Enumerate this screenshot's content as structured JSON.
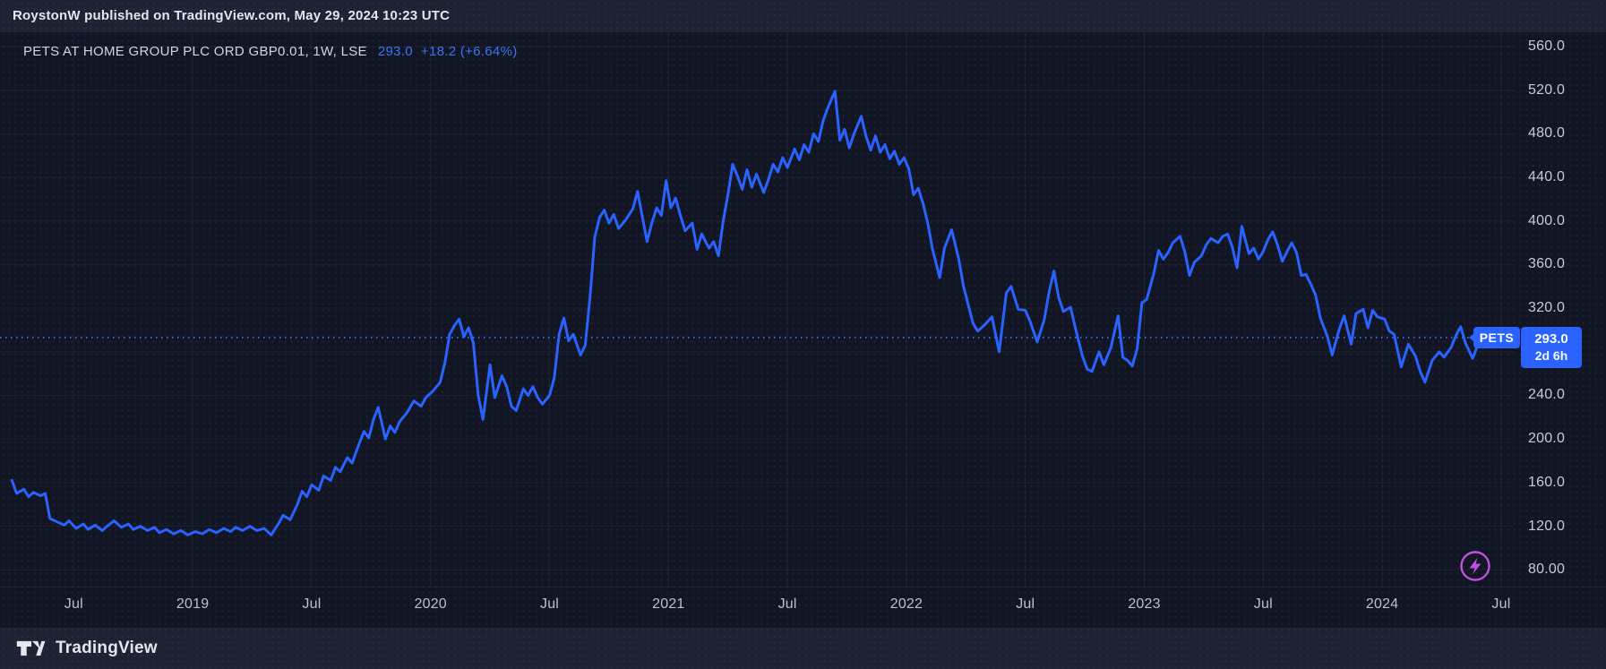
{
  "attribution": {
    "text": "RoystonW published on TradingView.com, May 29, 2024 10:23 UTC"
  },
  "symbol_row": {
    "full_text": "PETS AT HOME GROUP PLC ORD GBP0.01, 1W, LSE",
    "price": "293.0",
    "change": "+18.2 (+6.64%)"
  },
  "price_label": {
    "price": "293.0",
    "countdown": "2d 6h"
  },
  "series_badge": {
    "label": "PETS"
  },
  "footer": {
    "brand": "TradingView",
    "logo_icon": "tradingview-logo"
  },
  "icons": {
    "bottom_right": "lightning-bolt-icon"
  },
  "colors": {
    "accent_blue": "#2962ff",
    "quote_text_blue": "#3a74f1",
    "chart_background": "#111524",
    "band_background": "#1e2232",
    "axis_text": "#c8ccd6",
    "grid": "rgba(150,160,190,0.09)",
    "flash_purple": "#c050dd",
    "label_text_white": "#ffffff"
  },
  "chart_data": {
    "type": "line",
    "title": "PETS AT HOME GROUP PLC ORD GBP0.01, 1W, LSE",
    "symbol": "PETS",
    "interval": "1W",
    "exchange": "LSE",
    "last_price": 293.0,
    "change": 18.2,
    "change_pct": 6.64,
    "current_price_line": 293.0,
    "line_color": "#2962ff",
    "grid": true,
    "x_domain": [
      2018.19,
      2024.553
    ],
    "y_domain": [
      64.6,
      573.1
    ],
    "y_gridlines": [
      560,
      520,
      480,
      440,
      400,
      360,
      320,
      280,
      240,
      200,
      160,
      120,
      80
    ],
    "y_axis_labels": [
      {
        "value": 560,
        "label": "560.0"
      },
      {
        "value": 520,
        "label": "520.0"
      },
      {
        "value": 480,
        "label": "480.0"
      },
      {
        "value": 440,
        "label": "440.0"
      },
      {
        "value": 400,
        "label": "400.0"
      },
      {
        "value": 360,
        "label": "360.0"
      },
      {
        "value": 320,
        "label": "320.0"
      },
      {
        "value": 240,
        "label": "240.0"
      },
      {
        "value": 200,
        "label": "200.0"
      },
      {
        "value": 160,
        "label": "160.0"
      },
      {
        "value": 120,
        "label": "120.0"
      },
      {
        "value": 80,
        "label": "80.00"
      }
    ],
    "x_axis_labels": [
      {
        "t": 2018.5,
        "label": "Jul"
      },
      {
        "t": 2019.0,
        "label": "2019"
      },
      {
        "t": 2019.5,
        "label": "Jul"
      },
      {
        "t": 2020.0,
        "label": "2020"
      },
      {
        "t": 2020.5,
        "label": "Jul"
      },
      {
        "t": 2021.0,
        "label": "2021"
      },
      {
        "t": 2021.5,
        "label": "Jul"
      },
      {
        "t": 2022.0,
        "label": "2022"
      },
      {
        "t": 2022.5,
        "label": "Jul"
      },
      {
        "t": 2023.0,
        "label": "2023"
      },
      {
        "t": 2023.5,
        "label": "Jul"
      },
      {
        "t": 2024.0,
        "label": "2024"
      },
      {
        "t": 2024.5,
        "label": "Jul"
      }
    ],
    "points": [
      [
        2018.24,
        162
      ],
      [
        2018.26,
        150
      ],
      [
        2018.29,
        154
      ],
      [
        2018.31,
        147
      ],
      [
        2018.33,
        151
      ],
      [
        2018.36,
        148
      ],
      [
        2018.38,
        150
      ],
      [
        2018.4,
        127
      ],
      [
        2018.43,
        124
      ],
      [
        2018.46,
        121
      ],
      [
        2018.48,
        125
      ],
      [
        2018.51,
        118
      ],
      [
        2018.54,
        122
      ],
      [
        2018.56,
        117
      ],
      [
        2018.59,
        121
      ],
      [
        2018.62,
        116
      ],
      [
        2018.64,
        120
      ],
      [
        2018.67,
        125
      ],
      [
        2018.7,
        119
      ],
      [
        2018.73,
        122
      ],
      [
        2018.75,
        117
      ],
      [
        2018.78,
        120
      ],
      [
        2018.81,
        116
      ],
      [
        2018.84,
        119
      ],
      [
        2018.86,
        114
      ],
      [
        2018.89,
        117
      ],
      [
        2018.92,
        113
      ],
      [
        2018.95,
        116
      ],
      [
        2018.98,
        112
      ],
      [
        2019.01,
        115
      ],
      [
        2019.04,
        113
      ],
      [
        2019.07,
        117
      ],
      [
        2019.1,
        114
      ],
      [
        2019.13,
        118
      ],
      [
        2019.16,
        115
      ],
      [
        2019.18,
        119
      ],
      [
        2019.21,
        116
      ],
      [
        2019.24,
        120
      ],
      [
        2019.27,
        116
      ],
      [
        2019.3,
        118
      ],
      [
        2019.33,
        112
      ],
      [
        2019.36,
        122
      ],
      [
        2019.38,
        130
      ],
      [
        2019.41,
        126
      ],
      [
        2019.44,
        140
      ],
      [
        2019.46,
        152
      ],
      [
        2019.48,
        147
      ],
      [
        2019.5,
        158
      ],
      [
        2019.53,
        153
      ],
      [
        2019.55,
        166
      ],
      [
        2019.58,
        162
      ],
      [
        2019.6,
        174
      ],
      [
        2019.62,
        170
      ],
      [
        2019.65,
        183
      ],
      [
        2019.67,
        178
      ],
      [
        2019.7,
        196
      ],
      [
        2019.72,
        207
      ],
      [
        2019.74,
        201
      ],
      [
        2019.76,
        218
      ],
      [
        2019.78,
        229
      ],
      [
        2019.81,
        200
      ],
      [
        2019.83,
        212
      ],
      [
        2019.85,
        206
      ],
      [
        2019.87,
        216
      ],
      [
        2019.9,
        224
      ],
      [
        2019.93,
        235
      ],
      [
        2019.96,
        230
      ],
      [
        2019.98,
        238
      ],
      [
        2020.01,
        244
      ],
      [
        2020.04,
        252
      ],
      [
        2020.06,
        270
      ],
      [
        2020.08,
        296
      ],
      [
        2020.1,
        304
      ],
      [
        2020.12,
        310
      ],
      [
        2020.14,
        294
      ],
      [
        2020.16,
        302
      ],
      [
        2020.18,
        288
      ],
      [
        2020.2,
        240
      ],
      [
        2020.22,
        218
      ],
      [
        2020.25,
        268
      ],
      [
        2020.27,
        238
      ],
      [
        2020.3,
        258
      ],
      [
        2020.32,
        248
      ],
      [
        2020.34,
        230
      ],
      [
        2020.36,
        226
      ],
      [
        2020.39,
        246
      ],
      [
        2020.41,
        240
      ],
      [
        2020.43,
        248
      ],
      [
        2020.45,
        238
      ],
      [
        2020.47,
        232
      ],
      [
        2020.5,
        240
      ],
      [
        2020.52,
        256
      ],
      [
        2020.54,
        296
      ],
      [
        2020.56,
        311
      ],
      [
        2020.58,
        290
      ],
      [
        2020.6,
        296
      ],
      [
        2020.63,
        277
      ],
      [
        2020.65,
        286
      ],
      [
        2020.67,
        330
      ],
      [
        2020.69,
        385
      ],
      [
        2020.71,
        403
      ],
      [
        2020.73,
        410
      ],
      [
        2020.75,
        398
      ],
      [
        2020.77,
        406
      ],
      [
        2020.79,
        393
      ],
      [
        2020.82,
        401
      ],
      [
        2020.85,
        411
      ],
      [
        2020.87,
        427
      ],
      [
        2020.89,
        404
      ],
      [
        2020.91,
        381
      ],
      [
        2020.93,
        398
      ],
      [
        2020.95,
        412
      ],
      [
        2020.97,
        405
      ],
      [
        2020.99,
        437
      ],
      [
        2021.01,
        412
      ],
      [
        2021.03,
        421
      ],
      [
        2021.05,
        405
      ],
      [
        2021.07,
        391
      ],
      [
        2021.1,
        398
      ],
      [
        2021.12,
        374
      ],
      [
        2021.14,
        388
      ],
      [
        2021.17,
        375
      ],
      [
        2021.19,
        381
      ],
      [
        2021.21,
        368
      ],
      [
        2021.23,
        400
      ],
      [
        2021.25,
        424
      ],
      [
        2021.27,
        452
      ],
      [
        2021.29,
        441
      ],
      [
        2021.31,
        429
      ],
      [
        2021.33,
        447
      ],
      [
        2021.35,
        431
      ],
      [
        2021.37,
        443
      ],
      [
        2021.4,
        426
      ],
      [
        2021.42,
        438
      ],
      [
        2021.44,
        452
      ],
      [
        2021.46,
        445
      ],
      [
        2021.48,
        458
      ],
      [
        2021.5,
        449
      ],
      [
        2021.53,
        466
      ],
      [
        2021.55,
        456
      ],
      [
        2021.57,
        470
      ],
      [
        2021.59,
        463
      ],
      [
        2021.61,
        480
      ],
      [
        2021.63,
        473
      ],
      [
        2021.65,
        492
      ],
      [
        2021.67,
        504
      ],
      [
        2021.7,
        519
      ],
      [
        2021.72,
        474
      ],
      [
        2021.74,
        484
      ],
      [
        2021.76,
        467
      ],
      [
        2021.78,
        480
      ],
      [
        2021.81,
        496
      ],
      [
        2021.83,
        478
      ],
      [
        2021.85,
        465
      ],
      [
        2021.87,
        478
      ],
      [
        2021.89,
        463
      ],
      [
        2021.91,
        470
      ],
      [
        2021.93,
        457
      ],
      [
        2021.95,
        464
      ],
      [
        2021.97,
        452
      ],
      [
        2021.99,
        458
      ],
      [
        2022.01,
        448
      ],
      [
        2022.03,
        424
      ],
      [
        2022.05,
        430
      ],
      [
        2022.07,
        416
      ],
      [
        2022.09,
        398
      ],
      [
        2022.11,
        374
      ],
      [
        2022.14,
        348
      ],
      [
        2022.16,
        375
      ],
      [
        2022.19,
        392
      ],
      [
        2022.22,
        365
      ],
      [
        2022.24,
        340
      ],
      [
        2022.26,
        323
      ],
      [
        2022.28,
        306
      ],
      [
        2022.3,
        299
      ],
      [
        2022.33,
        305
      ],
      [
        2022.36,
        312
      ],
      [
        2022.39,
        280
      ],
      [
        2022.42,
        334
      ],
      [
        2022.44,
        340
      ],
      [
        2022.47,
        319
      ],
      [
        2022.5,
        318
      ],
      [
        2022.52,
        308
      ],
      [
        2022.55,
        289
      ],
      [
        2022.58,
        310
      ],
      [
        2022.6,
        335
      ],
      [
        2022.62,
        354
      ],
      [
        2022.64,
        330
      ],
      [
        2022.66,
        317
      ],
      [
        2022.69,
        321
      ],
      [
        2022.71,
        302
      ],
      [
        2022.74,
        276
      ],
      [
        2022.76,
        264
      ],
      [
        2022.78,
        262
      ],
      [
        2022.81,
        280
      ],
      [
        2022.83,
        268
      ],
      [
        2022.86,
        284
      ],
      [
        2022.89,
        313
      ],
      [
        2022.91,
        275
      ],
      [
        2022.93,
        272
      ],
      [
        2022.95,
        267
      ],
      [
        2022.97,
        283
      ],
      [
        2022.99,
        325
      ],
      [
        2023.01,
        328
      ],
      [
        2023.04,
        352
      ],
      [
        2023.06,
        373
      ],
      [
        2023.08,
        365
      ],
      [
        2023.1,
        371
      ],
      [
        2023.12,
        380
      ],
      [
        2023.15,
        386
      ],
      [
        2023.17,
        372
      ],
      [
        2023.19,
        350
      ],
      [
        2023.21,
        362
      ],
      [
        2023.24,
        368
      ],
      [
        2023.26,
        378
      ],
      [
        2023.28,
        384
      ],
      [
        2023.31,
        380
      ],
      [
        2023.33,
        386
      ],
      [
        2023.35,
        388
      ],
      [
        2023.37,
        376
      ],
      [
        2023.39,
        357
      ],
      [
        2023.41,
        395
      ],
      [
        2023.44,
        370
      ],
      [
        2023.46,
        375
      ],
      [
        2023.48,
        365
      ],
      [
        2023.5,
        372
      ],
      [
        2023.52,
        383
      ],
      [
        2023.54,
        390
      ],
      [
        2023.56,
        378
      ],
      [
        2023.58,
        363
      ],
      [
        2023.6,
        372
      ],
      [
        2023.62,
        380
      ],
      [
        2023.64,
        371
      ],
      [
        2023.66,
        350
      ],
      [
        2023.68,
        351
      ],
      [
        2023.7,
        342
      ],
      [
        2023.72,
        332
      ],
      [
        2023.74,
        311
      ],
      [
        2023.77,
        294
      ],
      [
        2023.79,
        277
      ],
      [
        2023.82,
        301
      ],
      [
        2023.84,
        313
      ],
      [
        2023.87,
        287
      ],
      [
        2023.89,
        315
      ],
      [
        2023.92,
        319
      ],
      [
        2023.94,
        302
      ],
      [
        2023.96,
        318
      ],
      [
        2023.98,
        312
      ],
      [
        2024.01,
        310
      ],
      [
        2024.03,
        299
      ],
      [
        2024.05,
        296
      ],
      [
        2024.08,
        266
      ],
      [
        2024.11,
        287
      ],
      [
        2024.14,
        276
      ],
      [
        2024.16,
        262
      ],
      [
        2024.18,
        252
      ],
      [
        2024.21,
        272
      ],
      [
        2024.24,
        280
      ],
      [
        2024.26,
        275
      ],
      [
        2024.29,
        284
      ],
      [
        2024.31,
        295
      ],
      [
        2024.33,
        303
      ],
      [
        2024.35,
        288
      ],
      [
        2024.38,
        274
      ],
      [
        2024.4,
        285
      ],
      [
        2024.42,
        291
      ],
      [
        2024.44,
        293
      ]
    ]
  }
}
